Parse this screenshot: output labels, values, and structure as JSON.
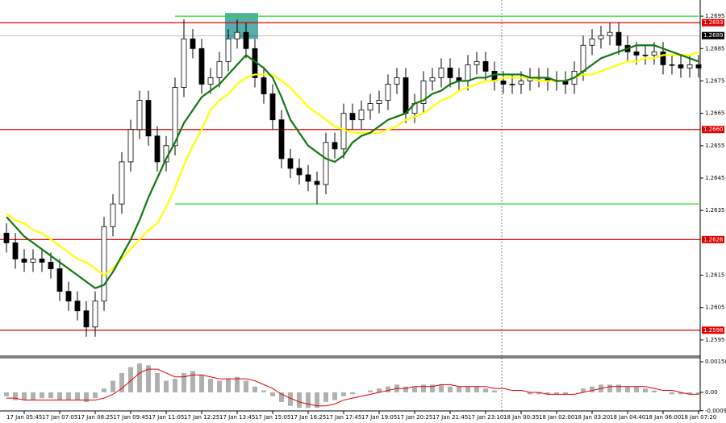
{
  "chart_data": [
    {
      "type": "candlestick",
      "ylim": [
        1.259,
        1.27
      ],
      "yticks": [
        1.2695,
        1.2685,
        1.2675,
        1.2665,
        1.2655,
        1.2645,
        1.2635,
        1.2615,
        1.2605,
        1.2595
      ],
      "xticks": [
        {
          "value": 2,
          "label": "17 Jan 05:45"
        },
        {
          "value": 6,
          "label": "17 Jan 07:05"
        },
        {
          "value": 10,
          "label": "17 Jan 08:25"
        },
        {
          "value": 14,
          "label": "17 Jan 09:45"
        },
        {
          "value": 18,
          "label": "17 Jan 11:05"
        },
        {
          "value": 22,
          "label": "17 Jan 12:25"
        },
        {
          "value": 26,
          "label": "17 Jan 13:45"
        },
        {
          "value": 30,
          "label": "17 Jan 15:05"
        },
        {
          "value": 34,
          "label": "17 Jan 16:25"
        },
        {
          "value": 38,
          "label": "17 Jan 17:45"
        },
        {
          "value": 42,
          "label": "17 Jan 19:05"
        },
        {
          "value": 46,
          "label": "17 Jan 20:25"
        },
        {
          "value": 50,
          "label": "17 Jan 21:45"
        },
        {
          "value": 54,
          "label": "17 Jan 23:10"
        },
        {
          "value": 58,
          "label": "18 Jan 00:35"
        },
        {
          "value": 62,
          "label": "18 Jan 02:00"
        },
        {
          "value": 66,
          "label": "18 Jan 03:20"
        },
        {
          "value": 70,
          "label": "18 Jan 04:40"
        },
        {
          "value": 74,
          "label": "18 Jan 06:00"
        },
        {
          "value": 78,
          "label": "18 Jan 07:20"
        }
      ],
      "open": [
        1.2628,
        1.2625,
        1.262,
        1.2619,
        1.262,
        1.2619,
        1.2617,
        1.261,
        1.2607,
        1.2604,
        1.2599,
        1.2607,
        1.263,
        1.2637,
        1.265,
        1.266,
        1.2669,
        1.2658,
        1.265,
        1.2655,
        1.2673,
        1.2688,
        1.2685,
        1.2674,
        1.2676,
        1.2681,
        1.2688,
        1.269,
        1.2685,
        1.2676,
        1.2671,
        1.2663,
        1.2651,
        1.2648,
        1.2646,
        1.2644,
        1.2643,
        1.2656,
        1.2654,
        1.2665,
        1.2663,
        1.2666,
        1.2668,
        1.2669,
        1.2674,
        1.2676,
        1.2665,
        1.2668,
        1.2675,
        1.2676,
        1.2679,
        1.2676,
        1.2675,
        1.268,
        1.2681,
        1.2678,
        1.2675,
        1.2674,
        1.2674,
        1.2675,
        1.2676,
        1.2676,
        1.2675,
        1.2675,
        1.2674,
        1.2678,
        1.2686,
        1.2688,
        1.2689,
        1.269,
        1.2686,
        1.2684,
        1.2683,
        1.2683,
        1.2684,
        1.268,
        1.268,
        1.2679,
        1.268
      ],
      "high": [
        1.2631,
        1.2628,
        1.2623,
        1.2623,
        1.2623,
        1.2622,
        1.262,
        1.2613,
        1.261,
        1.2607,
        1.261,
        1.2633,
        1.264,
        1.2653,
        1.2663,
        1.2672,
        1.2672,
        1.2661,
        1.2658,
        1.2676,
        1.2694,
        1.2691,
        1.2688,
        1.2679,
        1.2684,
        1.2691,
        1.2694,
        1.2693,
        1.2688,
        1.2679,
        1.2674,
        1.2666,
        1.2654,
        1.2651,
        1.2649,
        1.2647,
        1.2659,
        1.2659,
        1.2668,
        1.2668,
        1.2669,
        1.2671,
        1.2672,
        1.2677,
        1.2679,
        1.2679,
        1.2671,
        1.2678,
        1.2679,
        1.2682,
        1.2682,
        1.2679,
        1.2683,
        1.2684,
        1.2684,
        1.2681,
        1.2678,
        1.2677,
        1.2678,
        1.2679,
        1.2679,
        1.2679,
        1.2678,
        1.2678,
        1.2681,
        1.2689,
        1.2691,
        1.2692,
        1.2693,
        1.2693,
        1.2689,
        1.2687,
        1.2686,
        1.2687,
        1.2687,
        1.2683,
        1.2683,
        1.2683,
        1.2683
      ],
      "low": [
        1.2622,
        1.2617,
        1.2616,
        1.2616,
        1.2616,
        1.2614,
        1.2607,
        1.2604,
        1.2601,
        1.2596,
        1.2596,
        1.2604,
        1.2627,
        1.2634,
        1.2647,
        1.2657,
        1.2655,
        1.2647,
        1.2647,
        1.2652,
        1.267,
        1.2682,
        1.2671,
        1.2671,
        1.2673,
        1.2678,
        1.2685,
        1.2682,
        1.2673,
        1.2668,
        1.266,
        1.2648,
        1.2645,
        1.2643,
        1.2641,
        1.2637,
        1.264,
        1.2651,
        1.2651,
        1.266,
        1.266,
        1.2663,
        1.2665,
        1.2666,
        1.2671,
        1.2662,
        1.2662,
        1.2665,
        1.2672,
        1.2673,
        1.2673,
        1.2672,
        1.2672,
        1.2677,
        1.2675,
        1.2672,
        1.2671,
        1.2671,
        1.2671,
        1.2672,
        1.2673,
        1.2672,
        1.2672,
        1.2671,
        1.2671,
        1.2675,
        1.2683,
        1.2685,
        1.2686,
        1.2683,
        1.2681,
        1.268,
        1.268,
        1.268,
        1.2677,
        1.2677,
        1.2676,
        1.2676,
        1.2676
      ],
      "close": [
        1.2625,
        1.262,
        1.2619,
        1.262,
        1.2619,
        1.2617,
        1.261,
        1.2607,
        1.2604,
        1.2599,
        1.2607,
        1.263,
        1.2637,
        1.265,
        1.266,
        1.2669,
        1.2658,
        1.265,
        1.2655,
        1.2673,
        1.2688,
        1.2685,
        1.2674,
        1.2676,
        1.2681,
        1.2688,
        1.269,
        1.2685,
        1.2676,
        1.2671,
        1.2663,
        1.2651,
        1.2648,
        1.2646,
        1.2644,
        1.2643,
        1.2656,
        1.2654,
        1.2665,
        1.2663,
        1.2666,
        1.2668,
        1.2669,
        1.2674,
        1.2676,
        1.2665,
        1.2668,
        1.2675,
        1.2676,
        1.2679,
        1.2676,
        1.2675,
        1.268,
        1.2681,
        1.2678,
        1.2675,
        1.2674,
        1.2674,
        1.2675,
        1.2676,
        1.2676,
        1.2675,
        1.2675,
        1.2674,
        1.2678,
        1.2686,
        1.2688,
        1.2689,
        1.269,
        1.2686,
        1.2684,
        1.2683,
        1.2683,
        1.2684,
        1.268,
        1.268,
        1.2679,
        1.268,
        1.2679
      ],
      "overlays": [
        {
          "color": "#ffff00",
          "values": [
            1.2634,
            1.2632,
            1.2631,
            1.2629,
            1.2628,
            1.2626,
            1.2624,
            1.2622,
            1.262,
            1.2619,
            1.2617,
            1.2615,
            1.2617,
            1.262,
            1.2623,
            1.2626,
            1.2629,
            1.2631,
            1.2636,
            1.2642,
            1.2649,
            1.2655,
            1.266,
            1.2666,
            1.2669,
            1.2671,
            1.2674,
            1.2676,
            1.2677,
            1.2677,
            1.2677,
            1.2675,
            1.2673,
            1.267,
            1.2667,
            1.2665,
            1.2663,
            1.2661,
            1.266,
            1.2659,
            1.2659,
            1.2659,
            1.2659,
            1.266,
            1.2661,
            1.2663,
            1.2664,
            1.2665,
            1.2667,
            1.2669,
            1.267,
            1.2672,
            1.2673,
            1.2674,
            1.2675,
            1.2675,
            1.2676,
            1.2676,
            1.2676,
            1.2676,
            1.2675,
            1.2675,
            1.2675,
            1.2675,
            1.2676,
            1.2677,
            1.2677,
            1.2678,
            1.2679,
            1.268,
            1.2681,
            1.2681,
            1.2682,
            1.2682,
            1.2683,
            1.2683,
            1.2683,
            1.2683,
            1.2684
          ]
        },
        {
          "color": "#117711",
          "values": [
            1.2633,
            1.263,
            1.2627,
            1.2625,
            1.2623,
            1.2621,
            1.2619,
            1.2617,
            1.2615,
            1.2613,
            1.2611,
            1.2612,
            1.2616,
            1.2621,
            1.2626,
            1.2632,
            1.2639,
            1.2645,
            1.2651,
            1.2656,
            1.2662,
            1.2666,
            1.267,
            1.2672,
            1.2674,
            1.2677,
            1.268,
            1.2683,
            1.2681,
            1.2679,
            1.2676,
            1.267,
            1.2663,
            1.2659,
            1.2655,
            1.2653,
            1.2651,
            1.265,
            1.2652,
            1.2656,
            1.2658,
            1.2659,
            1.2661,
            1.2663,
            1.2664,
            1.2665,
            1.2668,
            1.2669,
            1.2671,
            1.2672,
            1.2674,
            1.2675,
            1.2675,
            1.2676,
            1.2676,
            1.2677,
            1.2677,
            1.2677,
            1.2677,
            1.2676,
            1.2676,
            1.2676,
            1.2675,
            1.2675,
            1.2676,
            1.2678,
            1.268,
            1.2682,
            1.2683,
            1.2684,
            1.2685,
            1.2686,
            1.2686,
            1.2686,
            1.2685,
            1.2684,
            1.2683,
            1.2682,
            1.2681
          ]
        }
      ],
      "levels": [
        {
          "value": 1.2693,
          "label": "1.2693",
          "color": "#e00000"
        },
        {
          "value": 1.2689,
          "label": "1.2689",
          "color": "#000000"
        },
        {
          "value": 1.266,
          "label": "1.2660",
          "color": "#e00000"
        },
        {
          "value": 1.2626,
          "label": "1.2626",
          "color": "#e00000"
        },
        {
          "value": 1.2598,
          "label": "1.2598",
          "color": "#e00000"
        }
      ],
      "trendlines": [
        {
          "value": 1.2695,
          "start": 19,
          "end": 78,
          "color": "#22dd22"
        },
        {
          "value": 1.2637,
          "start": 19,
          "end": 78,
          "color": "#22dd22"
        }
      ],
      "highlight": {
        "x": [
          25,
          28
        ],
        "y": [
          1.2688,
          1.2696
        ],
        "color": "#3a9d9d"
      }
    },
    {
      "type": "bar",
      "ylim": [
        -0.00096,
        0.00179
      ],
      "yticks": [
        0.00158,
        {
          "value": 0,
          "label": "0.00"
        },
        -0.00095
      ],
      "color": "#b0b0b0",
      "values": [
        -0.0002,
        -0.0004,
        -0.0004,
        -0.0004,
        -0.0003,
        -0.0003,
        -0.0004,
        -0.0004,
        -0.0004,
        -0.0005,
        -0.0003,
        0.0002,
        0.0006,
        0.001,
        0.0013,
        0.0015,
        0.0014,
        0.001,
        0.0006,
        0.0007,
        0.001,
        0.0011,
        0.0009,
        0.0007,
        0.0006,
        0.0007,
        0.0008,
        0.0006,
        0.0003,
        0.0001,
        -0.0002,
        -0.0005,
        -0.0007,
        -0.0008,
        -0.0008,
        -0.0008,
        -0.0005,
        -0.0004,
        -0.0002,
        -0.0001,
        0.0,
        0.0001,
        0.0002,
        0.0003,
        0.0004,
        0.0003,
        0.0003,
        0.0004,
        0.0004,
        0.0004,
        0.0003,
        0.0003,
        0.0003,
        0.0003,
        0.0002,
        0.0001,
        0.0,
        0.0,
        0.0,
        -0.0001,
        -0.0001,
        -0.0001,
        -0.0001,
        -0.0001,
        0.0,
        0.0002,
        0.0003,
        0.0004,
        0.0004,
        0.0004,
        0.0003,
        0.0003,
        0.0002,
        0.0001,
        0.0,
        -0.0001,
        -0.0001,
        -0.0001,
        -0.0001
      ],
      "line": {
        "color": "#dd0000",
        "values": [
          -0.0003,
          -0.0003,
          -0.0004,
          -0.0004,
          -0.0004,
          -0.0004,
          -0.0004,
          -0.0004,
          -0.0004,
          -0.0004,
          -0.0004,
          -0.0003,
          -0.0001,
          0.0002,
          0.0006,
          0.001,
          0.0012,
          0.0012,
          0.001,
          0.0008,
          0.0008,
          0.0009,
          0.0009,
          0.0008,
          0.0007,
          0.0007,
          0.0007,
          0.0007,
          0.0006,
          0.0004,
          0.0002,
          -0.0001,
          -0.0003,
          -0.0005,
          -0.0006,
          -0.0007,
          -0.0007,
          -0.0006,
          -0.0004,
          -0.0003,
          -0.0002,
          -0.0001,
          0.0,
          0.0001,
          0.0002,
          0.0002,
          0.0003,
          0.0003,
          0.0003,
          0.0004,
          0.0004,
          0.0003,
          0.0003,
          0.0003,
          0.0003,
          0.0002,
          0.0002,
          0.0001,
          0.0001,
          0.0,
          0.0,
          -0.0001,
          -0.0001,
          -0.0001,
          -0.0001,
          0.0,
          0.0001,
          0.0002,
          0.0003,
          0.0003,
          0.0003,
          0.0003,
          0.0003,
          0.0002,
          0.0001,
          0.0001,
          0.0,
          -0.0001,
          -0.0001
        ]
      }
    }
  ]
}
